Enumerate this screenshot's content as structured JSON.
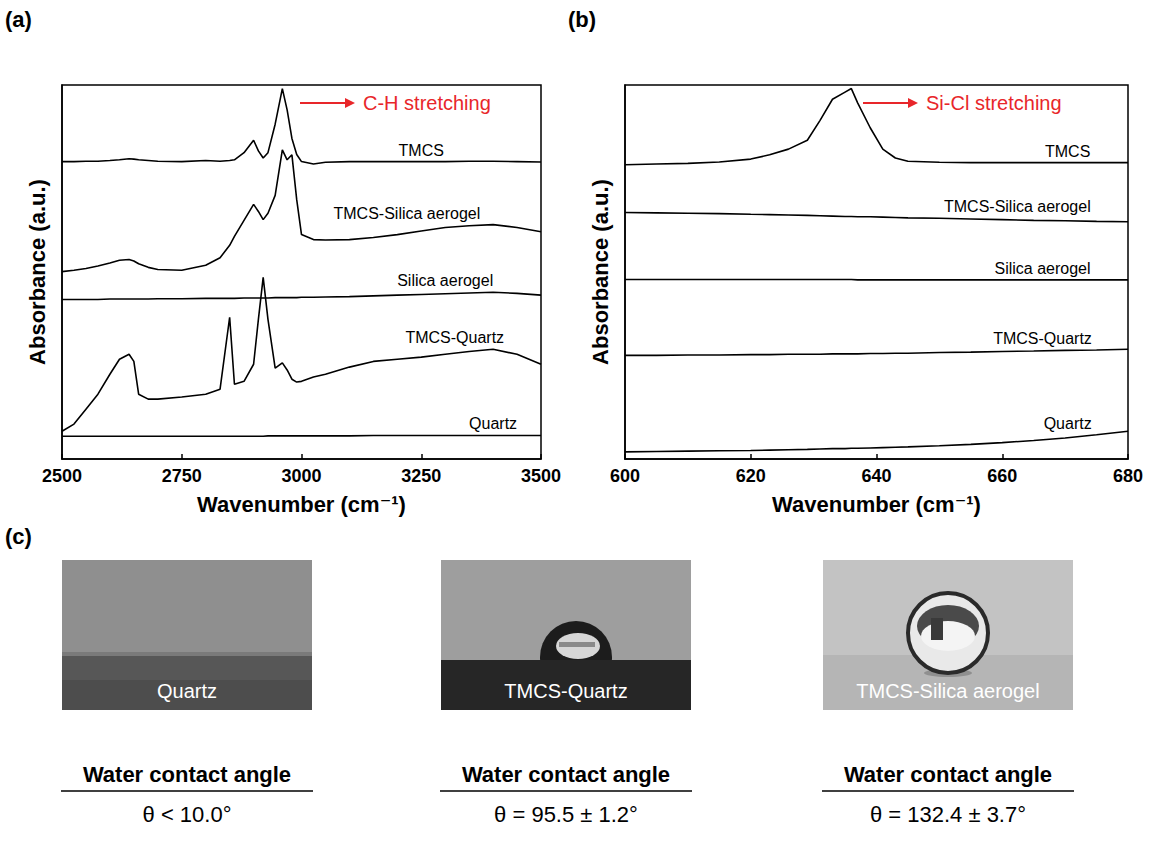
{
  "chart_data": [
    {
      "type": "line",
      "panel_label": "(a)",
      "x_label": "Wavenumber (cm⁻¹)",
      "y_label": "Absorbance (a.u.)",
      "annotations": [
        {
          "text": "C-H stretching",
          "color": "#e8262a"
        }
      ],
      "x": [
        2500,
        2525,
        2550,
        2575,
        2600,
        2620,
        2640,
        2650,
        2660,
        2680,
        2700,
        2750,
        2800,
        2830,
        2850,
        2860,
        2880,
        2900,
        2910,
        2920,
        2930,
        2945,
        2960,
        2970,
        2980,
        2990,
        3000,
        3025,
        3050,
        3100,
        3150,
        3200,
        3250,
        3300,
        3350,
        3400,
        3450,
        3500
      ],
      "series": [
        {
          "name": "TMCS",
          "color": "#000000",
          "values": [
            83.5,
            83.5,
            83.6,
            83.6,
            83.8,
            84,
            84.3,
            84.2,
            84,
            83.8,
            83.6,
            83.5,
            83.8,
            83.6,
            83.8,
            84,
            86,
            89.5,
            86.5,
            84.5,
            86,
            94,
            104,
            98,
            90,
            85.5,
            83.5,
            82.8,
            83.3,
            83.5,
            83.5,
            83.5,
            83.5,
            83.5,
            83.6,
            83.6,
            83.5,
            83.4
          ]
        },
        {
          "name": "TMCS-Silica aerogel",
          "color": "#000000",
          "values": [
            52.6,
            53,
            53.5,
            54.2,
            55,
            55.8,
            56,
            55.6,
            54.8,
            53.8,
            53.2,
            53,
            54.4,
            56.5,
            60,
            62.5,
            67,
            71.5,
            69.5,
            67.2,
            69,
            74,
            86.8,
            84,
            85.4,
            72.8,
            63,
            61.6,
            61.5,
            61.6,
            62.2,
            63,
            64,
            65,
            65.5,
            65.8,
            65,
            63.8
          ]
        },
        {
          "name": "Silica aerogel",
          "color": "#000000",
          "values": [
            44.8,
            44.8,
            44.8,
            44.8,
            44.9,
            44.9,
            44.9,
            44.9,
            44.9,
            44.9,
            45,
            45,
            45.1,
            45.1,
            45.1,
            45.1,
            45.2,
            45.2,
            45.2,
            45.2,
            45.2,
            45.3,
            45.3,
            45.3,
            45.3,
            45.3,
            45.4,
            45.4,
            45.5,
            45.6,
            45.8,
            46,
            46.2,
            46.4,
            46.6,
            46.8,
            46.5,
            46
          ]
        },
        {
          "name": "TMCS-Quartz",
          "color": "#000000",
          "values": [
            7.8,
            9.8,
            14,
            18.2,
            23.8,
            28,
            29.4,
            27.4,
            18.2,
            16.8,
            16.8,
            17.4,
            18.2,
            19.6,
            39.8,
            21,
            21.8,
            26.6,
            39.2,
            51,
            39.2,
            25.5,
            27,
            25,
            22.4,
            21.6,
            21.8,
            23,
            23.8,
            25.8,
            27.4,
            28,
            28.6,
            29.4,
            30.2,
            30.8,
            29.4,
            26.6
          ]
        },
        {
          "name": "Quartz",
          "color": "#000000",
          "values": [
            6.4,
            6.4,
            6.4,
            6.4,
            6.4,
            6.4,
            6.4,
            6.4,
            6.4,
            6.4,
            6.4,
            6.4,
            6.4,
            6.4,
            6.4,
            6.4,
            6.4,
            6.4,
            6.4,
            6.4,
            6.5,
            6.5,
            6.5,
            6.5,
            6.5,
            6.5,
            6.5,
            6.5,
            6.5,
            6.5,
            6.6,
            6.6,
            6.6,
            6.6,
            6.6,
            6.6,
            6.6,
            6.6
          ]
        }
      ],
      "xlim": [
        2500,
        3500
      ],
      "xticks": [
        2500,
        2750,
        3000,
        3250,
        3500
      ],
      "ylim": [
        0,
        105
      ],
      "tick_labels": "x",
      "grid": false
    },
    {
      "type": "line",
      "panel_label": "(b)",
      "x_label": "Wavenumber (cm⁻¹)",
      "y_label": "Absorbance (a.u.)",
      "annotations": [
        {
          "text": "Si-Cl stretching",
          "color": "#e8262a"
        }
      ],
      "x": [
        600,
        605,
        610,
        615,
        620,
        623,
        626,
        629,
        631,
        633,
        635,
        636,
        637,
        639,
        641,
        643,
        645,
        650,
        655,
        660,
        665,
        670,
        675,
        680
      ],
      "series": [
        {
          "name": "TMCS",
          "color": "#000000",
          "values": [
            82.6,
            82.8,
            83,
            83.4,
            84.2,
            85.4,
            87,
            89.5,
            95,
            101,
            103,
            104,
            100,
            93,
            87,
            84.5,
            83.6,
            83.3,
            83.2,
            83.2,
            83.2,
            83.2,
            83.2,
            83.2
          ]
        },
        {
          "name": "TMCS-Silica aerogel",
          "color": "#000000",
          "values": [
            69.2,
            69.1,
            69,
            68.9,
            68.7,
            68.6,
            68.5,
            68.4,
            68.3,
            68.2,
            68.1,
            68.1,
            68,
            68,
            67.9,
            67.8,
            67.7,
            67.6,
            67.4,
            67.2,
            67,
            66.9,
            66.7,
            66.6
          ]
        },
        {
          "name": "Silica aerogel",
          "color": "#000000",
          "values": [
            50.4,
            50.4,
            50.4,
            50.4,
            50.4,
            50.4,
            50.4,
            50.4,
            50.4,
            50.4,
            50.4,
            50.4,
            50.3,
            50.3,
            50.3,
            50.3,
            50.3,
            50.3,
            50.3,
            50.3,
            50.3,
            50.3,
            50.3,
            50.3
          ]
        },
        {
          "name": "TMCS-Quartz",
          "color": "#000000",
          "values": [
            29.1,
            29.1,
            29.2,
            29.2,
            29.3,
            29.3,
            29.4,
            29.4,
            29.4,
            29.5,
            29.5,
            29.5,
            29.5,
            29.6,
            29.6,
            29.7,
            29.7,
            29.9,
            30,
            30.2,
            30.3,
            30.5,
            30.6,
            30.8
          ]
        },
        {
          "name": "Quartz",
          "color": "#000000",
          "values": [
            2,
            2.1,
            2.2,
            2.3,
            2.4,
            2.5,
            2.6,
            2.7,
            2.8,
            2.9,
            2.9,
            3,
            3,
            3.1,
            3.2,
            3.3,
            3.4,
            3.7,
            4.1,
            4.6,
            5.2,
            5.9,
            6.8,
            7.8
          ]
        }
      ],
      "xlim": [
        600,
        680
      ],
      "xticks": [
        600,
        620,
        640,
        660,
        680
      ],
      "ylim": [
        0,
        105
      ],
      "tick_labels": "x",
      "grid": false
    }
  ],
  "contact_angle": {
    "panel_label": "(c)",
    "samples": [
      {
        "name": "Quartz",
        "heading": "Water contact angle",
        "value": "θ < 10.0°"
      },
      {
        "name": "TMCS-Quartz",
        "heading": "Water contact angle",
        "value": "θ = 95.5 ± 1.2°"
      },
      {
        "name": "TMCS-Silica aerogel",
        "heading": "Water contact angle",
        "value": "θ = 132.4 ± 3.7°"
      }
    ]
  }
}
